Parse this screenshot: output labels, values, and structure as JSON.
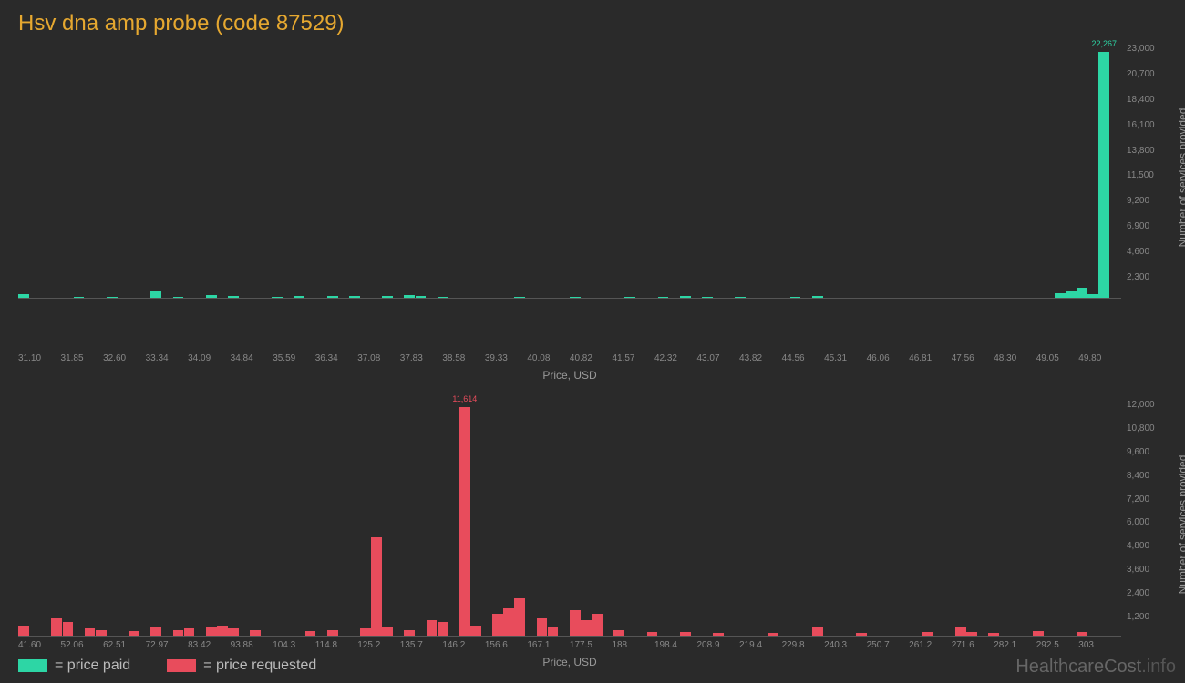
{
  "title": "Hsv dna amp probe (code 87529)",
  "colors": {
    "background": "#2a2a2a",
    "title": "#e6a830",
    "paid": "#2dd6a5",
    "requested": "#e84c5c",
    "axis_text": "#888888",
    "label_text": "#999999",
    "watermark": "#666666"
  },
  "chart1": {
    "type": "bar",
    "color": "#2dd6a5",
    "x_label": "Price, USD",
    "y_label": "Number of services provided",
    "x_ticks": [
      "31.10",
      "31.85",
      "32.60",
      "33.34",
      "34.09",
      "34.84",
      "35.59",
      "36.34",
      "37.08",
      "37.83",
      "38.58",
      "39.33",
      "40.08",
      "40.82",
      "41.57",
      "42.32",
      "43.07",
      "43.82",
      "44.56",
      "45.31",
      "46.06",
      "46.81",
      "47.56",
      "48.30",
      "49.05",
      "49.80"
    ],
    "y_ticks": [
      "",
      "2,300",
      "4,600",
      "6,900",
      "9,200",
      "11,500",
      "13,800",
      "16,100",
      "18,400",
      "20,700",
      "23,000"
    ],
    "y_max": 23000,
    "peak_label": "22,267",
    "bars": [
      {
        "i": 0,
        "v": 350
      },
      {
        "i": 5,
        "v": 120
      },
      {
        "i": 8,
        "v": 100
      },
      {
        "i": 12,
        "v": 550
      },
      {
        "i": 14,
        "v": 80
      },
      {
        "i": 17,
        "v": 250
      },
      {
        "i": 19,
        "v": 150
      },
      {
        "i": 23,
        "v": 120
      },
      {
        "i": 25,
        "v": 180
      },
      {
        "i": 28,
        "v": 200
      },
      {
        "i": 30,
        "v": 150
      },
      {
        "i": 33,
        "v": 140
      },
      {
        "i": 35,
        "v": 280
      },
      {
        "i": 36,
        "v": 200
      },
      {
        "i": 38,
        "v": 100
      },
      {
        "i": 45,
        "v": 80
      },
      {
        "i": 50,
        "v": 90
      },
      {
        "i": 55,
        "v": 100
      },
      {
        "i": 58,
        "v": 120
      },
      {
        "i": 60,
        "v": 200
      },
      {
        "i": 62,
        "v": 100
      },
      {
        "i": 65,
        "v": 80
      },
      {
        "i": 70,
        "v": 100
      },
      {
        "i": 72,
        "v": 150
      },
      {
        "i": 94,
        "v": 400
      },
      {
        "i": 95,
        "v": 700
      },
      {
        "i": 96,
        "v": 900
      },
      {
        "i": 97,
        "v": 350
      },
      {
        "i": 98,
        "v": 22267
      }
    ],
    "n_slots": 100
  },
  "chart2": {
    "type": "bar",
    "color": "#e84c5c",
    "x_label": "Price, USD",
    "y_label": "Number of services provided",
    "x_ticks": [
      "41.60",
      "52.06",
      "62.51",
      "72.97",
      "83.42",
      "93.88",
      "104.3",
      "114.8",
      "125.2",
      "135.7",
      "146.2",
      "156.6",
      "167.1",
      "177.5",
      "188",
      "198.4",
      "208.9",
      "219.4",
      "229.8",
      "240.3",
      "250.7",
      "261.2",
      "271.6",
      "282.1",
      "292.5",
      "303"
    ],
    "y_ticks": [
      "",
      "1,200",
      "2,400",
      "3,600",
      "4,800",
      "6,000",
      "7,200",
      "8,400",
      "9,600",
      "10,800",
      "12,000"
    ],
    "y_max": 12000,
    "peak_label": "11,614",
    "bars": [
      {
        "i": 0,
        "v": 500
      },
      {
        "i": 3,
        "v": 900
      },
      {
        "i": 4,
        "v": 700
      },
      {
        "i": 6,
        "v": 350
      },
      {
        "i": 7,
        "v": 300
      },
      {
        "i": 10,
        "v": 250
      },
      {
        "i": 12,
        "v": 400
      },
      {
        "i": 14,
        "v": 300
      },
      {
        "i": 15,
        "v": 350
      },
      {
        "i": 17,
        "v": 450
      },
      {
        "i": 18,
        "v": 500
      },
      {
        "i": 19,
        "v": 350
      },
      {
        "i": 21,
        "v": 300
      },
      {
        "i": 26,
        "v": 250
      },
      {
        "i": 28,
        "v": 300
      },
      {
        "i": 31,
        "v": 350
      },
      {
        "i": 32,
        "v": 5000
      },
      {
        "i": 33,
        "v": 400
      },
      {
        "i": 35,
        "v": 300
      },
      {
        "i": 37,
        "v": 800
      },
      {
        "i": 38,
        "v": 700
      },
      {
        "i": 40,
        "v": 11614
      },
      {
        "i": 41,
        "v": 500
      },
      {
        "i": 43,
        "v": 1100
      },
      {
        "i": 44,
        "v": 1400
      },
      {
        "i": 45,
        "v": 1900
      },
      {
        "i": 47,
        "v": 900
      },
      {
        "i": 48,
        "v": 400
      },
      {
        "i": 50,
        "v": 1300
      },
      {
        "i": 51,
        "v": 800
      },
      {
        "i": 52,
        "v": 1100
      },
      {
        "i": 54,
        "v": 300
      },
      {
        "i": 57,
        "v": 200
      },
      {
        "i": 60,
        "v": 200
      },
      {
        "i": 63,
        "v": 150
      },
      {
        "i": 68,
        "v": 150
      },
      {
        "i": 72,
        "v": 400
      },
      {
        "i": 76,
        "v": 150
      },
      {
        "i": 82,
        "v": 200
      },
      {
        "i": 85,
        "v": 400
      },
      {
        "i": 86,
        "v": 200
      },
      {
        "i": 88,
        "v": 150
      },
      {
        "i": 92,
        "v": 250
      },
      {
        "i": 96,
        "v": 200
      }
    ],
    "n_slots": 100
  },
  "legend": {
    "paid": "= price paid",
    "requested": "= price requested"
  },
  "watermark": {
    "main": "HealthcareCost",
    "suffix": ".info"
  }
}
